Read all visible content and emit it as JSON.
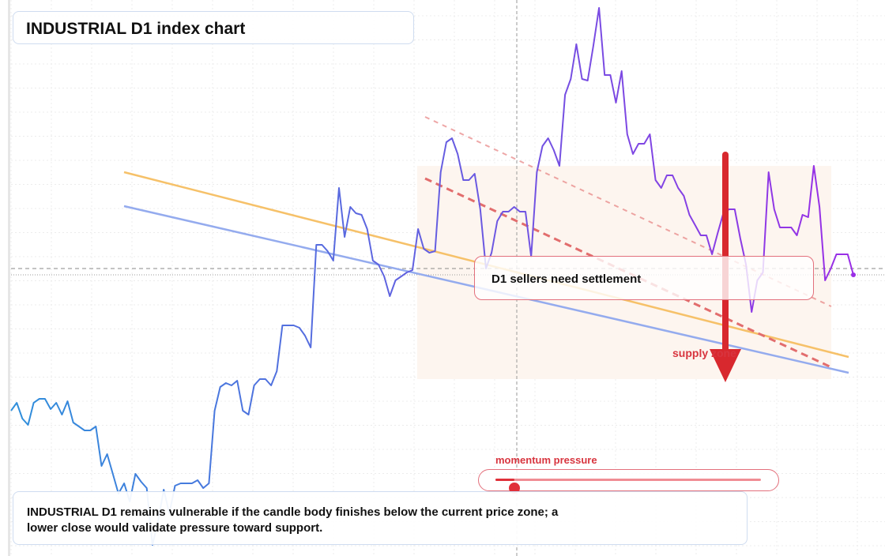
{
  "title": "INDUSTRIAL D1 index chart",
  "annotation": "D1 sellers need settlement",
  "zone_label": "supply zone",
  "momentum": {
    "label": "momentum pressure",
    "value": 0.07
  },
  "caption": "INDUSTRIAL D1 remains vulnerable if the candle body finishes below the current price zone; a lower close would validate pressure toward support.",
  "colors": {
    "line_start": "#2f8fdb",
    "line_end": "#9a2ee6",
    "orange_line": "#f6c169",
    "blue_line": "#94abee",
    "resistance": "#e26d6d",
    "arrow": "#d8282e",
    "zone_fill": "#fdf5ef"
  },
  "chart_data": {
    "type": "line",
    "title": "INDUSTRIAL D1 index chart",
    "xlabel": "",
    "ylabel": "",
    "grid": true,
    "series": [
      {
        "values": [
          520,
          510,
          530,
          538,
          510,
          505,
          505,
          518,
          510,
          525,
          508,
          535,
          540,
          545,
          545,
          540,
          590,
          575,
          600,
          625,
          612,
          635,
          600,
          610,
          618,
          690,
          660,
          620,
          650,
          615,
          612,
          612,
          612,
          608,
          618,
          612,
          520,
          490,
          485,
          488,
          482,
          520,
          525,
          488,
          480,
          480,
          488,
          470,
          412,
          412,
          412,
          415,
          425,
          440,
          310,
          310,
          318,
          330,
          238,
          300,
          262,
          270,
          272,
          290,
          330,
          335,
          350,
          375,
          355,
          350,
          345,
          342,
          290,
          315,
          320,
          318,
          218,
          180,
          175,
          195,
          228,
          228,
          220,
          265,
          340,
          320,
          280,
          268,
          268,
          262,
          268,
          268,
          325,
          218,
          185,
          175,
          190,
          210,
          120,
          100,
          56,
          100,
          102,
          58,
          10,
          95,
          95,
          130,
          90,
          170,
          195,
          182,
          182,
          170,
          228,
          238,
          222,
          222,
          238,
          248,
          272,
          285,
          298,
          298,
          322,
          295,
          270,
          265,
          265,
          302,
          335,
          395,
          355,
          345,
          218,
          265,
          288,
          288,
          288,
          298,
          272,
          275,
          210,
          262,
          355,
          340,
          322,
          322,
          322,
          348
        ]
      }
    ],
    "trendlines": [
      {
        "name": "orange",
        "start": [
          157,
          218
        ],
        "end": [
          1074,
          452
        ]
      },
      {
        "name": "blue",
        "start": [
          157,
          261
        ],
        "end": [
          1074,
          472
        ]
      },
      {
        "name": "resistance-upper",
        "start": [
          538,
          148
        ],
        "end": [
          1052,
          388
        ]
      },
      {
        "name": "resistance-lower",
        "start": [
          538,
          226
        ],
        "end": [
          1052,
          465
        ]
      }
    ],
    "current_level": 340,
    "cursor_x": 654,
    "zone": {
      "x": [
        528,
        1052
      ],
      "y": [
        210,
        480
      ]
    },
    "arrow": {
      "x": 918,
      "y_from": 196,
      "y_to": 484
    }
  }
}
